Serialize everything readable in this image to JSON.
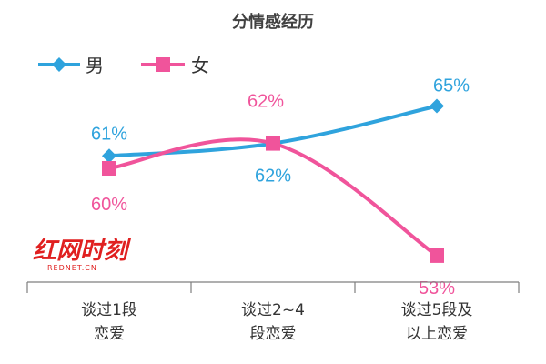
{
  "chart_data": {
    "type": "line",
    "title": "分情感经历",
    "categories": [
      "谈过1段\n恋爱",
      "谈过2~4\n段恋爱",
      "谈过5段及\n以上恋爱"
    ],
    "series": [
      {
        "name": "男",
        "values": [
          61,
          62,
          65
        ],
        "labels": [
          "61%",
          "62%",
          "65%"
        ],
        "color": "#2fa3dd",
        "marker": "diamond"
      },
      {
        "name": "女",
        "values": [
          60,
          62,
          53
        ],
        "labels": [
          "60%",
          "62%",
          "53%"
        ],
        "color": "#f0549b",
        "marker": "square"
      }
    ],
    "legend": "top-left",
    "grid": false
  },
  "watermark": {
    "text": "红网时刻",
    "subtext": "REDNET.CN"
  }
}
